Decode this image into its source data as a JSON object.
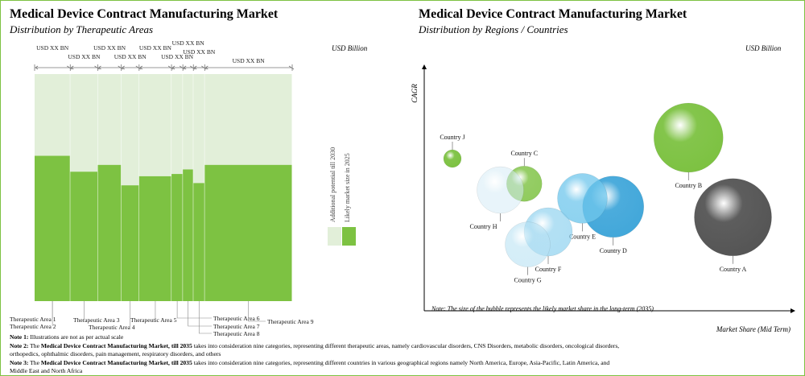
{
  "left": {
    "title": "Medical Device Contract Manufacturing Market",
    "subtitle": "Distribution by Therapeutic Areas",
    "unit": "USD Billion",
    "legend": {
      "light_label": "Additional potential till 2030",
      "dark_label": "Likely market size in 2025",
      "light_color": "#e2efd9",
      "dark_color": "#7dc242"
    }
  },
  "right": {
    "title": "Medical Device Contract Manufacturing Market",
    "subtitle": "Distribution by Regions / Countries",
    "unit": "USD Billion",
    "note": "Note: The size of the bubble represents the likely market share in the long-term (2035)"
  },
  "chart_data": [
    {
      "type": "bar",
      "title": "Distribution by Therapeutic Areas",
      "ylabel": "USD Billion",
      "categories": [
        "Therapeutic Area 1",
        "Therapeutic Area 2",
        "Therapeutic Area 3",
        "Therapeutic Area 4",
        "Therapeutic Area 5",
        "Therapeutic Area 6",
        "Therapeutic Area 7",
        "Therapeutic Area 8",
        "Therapeutic Area 9"
      ],
      "value_labels": [
        "USD XX BN",
        "USD XX BN",
        "USD XX BN",
        "USD XX BN",
        "USD XX BN",
        "USD XX BN",
        "USD XX BN",
        "USD XX BN",
        "USD XX BN"
      ],
      "widths": [
        44,
        34,
        29,
        22,
        40,
        14,
        13,
        14,
        108
      ],
      "series": [
        {
          "name": "Likely market size in 2025",
          "values": [
            64,
            57,
            60,
            51,
            55,
            56,
            58,
            52,
            60
          ]
        },
        {
          "name": "Additional potential till 2030",
          "values": [
            36,
            43,
            40,
            49,
            45,
            44,
            42,
            48,
            40
          ]
        }
      ],
      "ylim": [
        0,
        100
      ]
    },
    {
      "type": "scatter",
      "title": "Distribution by Regions / Countries",
      "xlabel": "Market Share (Mid Term)",
      "ylabel": "CAGR",
      "xlim": [
        0,
        100
      ],
      "ylim": [
        0,
        100
      ],
      "points": [
        {
          "label": "Country A",
          "x": 86,
          "y": 37,
          "size": 48,
          "color": "#555555"
        },
        {
          "label": "Country B",
          "x": 73,
          "y": 75,
          "size": 43,
          "color": "#7dc242"
        },
        {
          "label": "Country C",
          "x": 25,
          "y": 53,
          "size": 22,
          "color": "#7dc242"
        },
        {
          "label": "Country D",
          "x": 51,
          "y": 42,
          "size": 38,
          "color": "#2e9ed6"
        },
        {
          "label": "Country E",
          "x": 42,
          "y": 46,
          "size": 31,
          "color": "#6ec6ec"
        },
        {
          "label": "Country F",
          "x": 32,
          "y": 30,
          "size": 30,
          "color": "#8dd1ef"
        },
        {
          "label": "Country G",
          "x": 26,
          "y": 24,
          "size": 28,
          "color": "#b7e1f3"
        },
        {
          "label": "Country H",
          "x": 18,
          "y": 50,
          "size": 29,
          "color": "#d4ebf5"
        },
        {
          "label": "Country J",
          "x": 4,
          "y": 65,
          "size": 11,
          "color": "#7dc242"
        }
      ]
    }
  ],
  "notes": {
    "n1_head": "Note 1:",
    "n1_text": " Illustrations are not as per actual scale",
    "n2_head": "Note 2:",
    "n2_pre": " The ",
    "n2_bold": "Medical Device Contract Manufacturing Market, till 2035",
    "n2_text": " takes into consideration nine categories, representing different therapeutic areas, namely cardiovascular disorders, CNS Disorders, metabolic disorders, oncological disorders,",
    "n2_text2": "orthopedics, ophthalmic disorders, pain management, respiratory disorders, and others",
    "n3_head": "Note 3:",
    "n3_pre": " The ",
    "n3_bold": "Medical Device Contract Manufacturing Market, till 2035",
    "n3_text": " takes into consideration nine categories, representing different countries in various geographical regions namely North America, Europe, Asia-Pacific, Latin America, and",
    "n3_text2": "Middle East and North Africa"
  }
}
